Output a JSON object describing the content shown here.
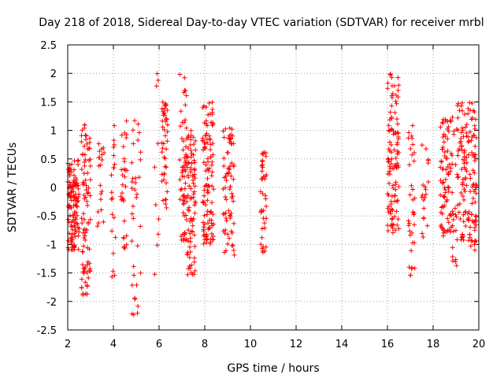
{
  "chart_data": {
    "type": "scatter",
    "title": "Day 218 of 2018, Sidereal Day-to-day VTEC variation (SDTVAR) for receiver mrbl",
    "xlabel": "GPS time / hours",
    "ylabel": "SDTVAR / TECUs",
    "xlim": [
      2,
      20
    ],
    "ylim": [
      -2.5,
      2.5
    ],
    "x_ticks": [
      2,
      4,
      6,
      8,
      10,
      12,
      14,
      16,
      18,
      20
    ],
    "y_ticks": [
      -2.5,
      -2,
      -1.5,
      -1,
      -0.5,
      0,
      0.5,
      1,
      1.5,
      2,
      2.5
    ],
    "x_tick_labels": [
      "2",
      "4",
      "6",
      "8",
      "10",
      "12",
      "14",
      "16",
      "18",
      "20"
    ],
    "y_tick_labels": [
      "-2.5",
      "-2",
      "-1.5",
      "-1",
      "-0.5",
      "0",
      "0.5",
      "1",
      "1.5",
      "2",
      "2.5"
    ],
    "grid": true,
    "marker": "+",
    "marker_color": "#ff0000",
    "series": [
      {
        "name": "SDTVAR",
        "clusters": [
          {
            "x": [
              2.0,
              2.5
            ],
            "y": [
              -1.1,
              0.5
            ],
            "count": 120
          },
          {
            "x": [
              2.6,
              3.0
            ],
            "y": [
              -1.9,
              1.1
            ],
            "count": 90
          },
          {
            "x": [
              3.3,
              3.6
            ],
            "y": [
              -0.7,
              0.8
            ],
            "count": 20
          },
          {
            "x": [
              3.9,
              4.1
            ],
            "y": [
              -1.7,
              1.3
            ],
            "count": 20
          },
          {
            "x": [
              4.3,
              4.6
            ],
            "y": [
              -1.1,
              1.2
            ],
            "count": 30
          },
          {
            "x": [
              4.8,
              5.2
            ],
            "y": [
              -2.3,
              1.2
            ],
            "count": 35
          },
          {
            "x": [
              5.8,
              6.0
            ],
            "y": [
              -1.6,
              2.2
            ],
            "count": 10
          },
          {
            "x": [
              6.1,
              6.4
            ],
            "y": [
              -0.4,
              1.5
            ],
            "count": 45
          },
          {
            "x": [
              6.9,
              7.2
            ],
            "y": [
              -1.0,
              2.0
            ],
            "count": 60
          },
          {
            "x": [
              7.2,
              7.6
            ],
            "y": [
              -1.6,
              1.0
            ],
            "count": 90
          },
          {
            "x": [
              7.9,
              8.4
            ],
            "y": [
              -1.0,
              1.5
            ],
            "count": 110
          },
          {
            "x": [
              8.8,
              9.3
            ],
            "y": [
              -1.2,
              1.1
            ],
            "count": 70
          },
          {
            "x": [
              10.4,
              10.7
            ],
            "y": [
              -1.2,
              0.7
            ],
            "count": 40
          },
          {
            "x": [
              16.0,
              16.5
            ],
            "y": [
              -0.8,
              2.0
            ],
            "count": 110
          },
          {
            "x": [
              16.9,
              17.2
            ],
            "y": [
              -1.7,
              1.3
            ],
            "count": 35
          },
          {
            "x": [
              17.5,
              17.8
            ],
            "y": [
              -0.9,
              0.8
            ],
            "count": 20
          },
          {
            "x": [
              18.3,
              18.8
            ],
            "y": [
              -0.9,
              1.2
            ],
            "count": 80
          },
          {
            "x": [
              18.8,
              19.2
            ],
            "y": [
              -1.4,
              1.6
            ],
            "count": 40
          },
          {
            "x": [
              19.2,
              19.9
            ],
            "y": [
              -1.1,
              1.5
            ],
            "count": 130
          }
        ]
      }
    ]
  }
}
